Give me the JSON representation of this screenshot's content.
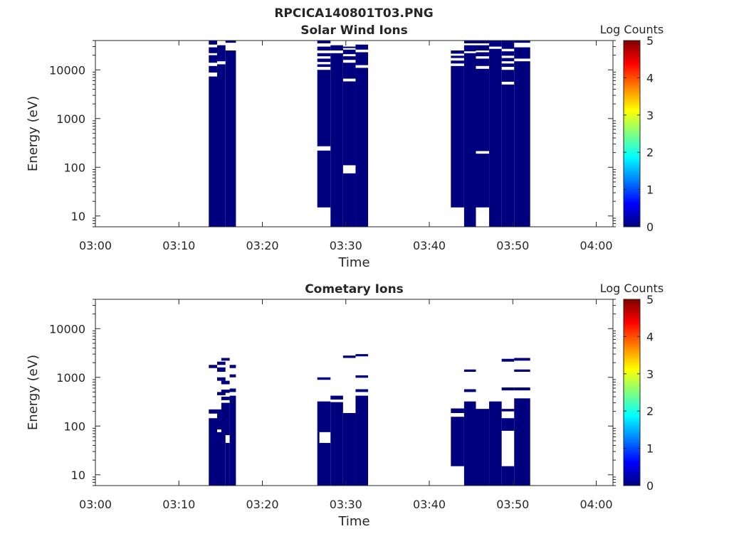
{
  "figure_title": "RPCICA140801T03.PNG",
  "colors": {
    "filled": "#00007f",
    "axis": "#262626",
    "colormap": [
      "#00007f",
      "#0000ff",
      "#0080ff",
      "#00ffff",
      "#80ff80",
      "#ffff00",
      "#ff8000",
      "#ff0000",
      "#7f0000"
    ]
  },
  "chart_data": [
    {
      "type": "heatmap",
      "title": "Solar Wind Ions",
      "xlabel": "Time",
      "ylabel": "Energy (eV)",
      "yscale": "log",
      "xlim": [
        "03:00",
        "04:02"
      ],
      "ylim": [
        6,
        40000
      ],
      "x_ticks": [
        "03:00",
        "03:10",
        "03:20",
        "03:30",
        "03:40",
        "03:50",
        "04:00"
      ],
      "y_ticks": [
        "10",
        "100",
        "1000",
        "10000"
      ],
      "colorbar": {
        "label": "Log Counts",
        "range": [
          0,
          5
        ],
        "ticks": [
          "0",
          "1",
          "2",
          "3",
          "4",
          "5"
        ]
      },
      "value_in_filled_cells": 0,
      "filled_cells": [
        {
          "t_start": "03:13:35",
          "t_end": "03:14:35",
          "e_min": 6,
          "e_max": 7300
        },
        {
          "t_start": "03:13:35",
          "t_end": "03:14:35",
          "e_min": 8800,
          "e_max": 12000
        },
        {
          "t_start": "03:13:35",
          "t_end": "03:14:35",
          "e_min": 14000,
          "e_max": 20000
        },
        {
          "t_start": "03:13:35",
          "t_end": "03:14:35",
          "e_min": 22000,
          "e_max": 29000
        },
        {
          "t_start": "03:13:35",
          "t_end": "03:14:35",
          "e_min": 33000,
          "e_max": 40000
        },
        {
          "t_start": "03:14:35",
          "t_end": "03:15:35",
          "e_min": 6,
          "e_max": 13000
        },
        {
          "t_start": "03:14:35",
          "t_end": "03:15:35",
          "e_min": 15000,
          "e_max": 32000
        },
        {
          "t_start": "03:15:35",
          "t_end": "03:16:50",
          "e_min": 6,
          "e_max": 25000
        },
        {
          "t_start": "03:15:35",
          "t_end": "03:16:50",
          "e_min": 36000,
          "e_max": 40000
        },
        {
          "t_start": "03:26:35",
          "t_end": "03:28:10",
          "e_min": 15,
          "e_max": 220
        },
        {
          "t_start": "03:26:35",
          "t_end": "03:28:10",
          "e_min": 270,
          "e_max": 10000
        },
        {
          "t_start": "03:26:35",
          "t_end": "03:28:10",
          "e_min": 11500,
          "e_max": 13000
        },
        {
          "t_start": "03:26:35",
          "t_end": "03:28:10",
          "e_min": 14500,
          "e_max": 17000
        },
        {
          "t_start": "03:26:35",
          "t_end": "03:28:10",
          "e_min": 19000,
          "e_max": 22000
        },
        {
          "t_start": "03:26:35",
          "t_end": "03:28:10",
          "e_min": 25000,
          "e_max": 30000
        },
        {
          "t_start": "03:26:35",
          "t_end": "03:28:10",
          "e_min": 35000,
          "e_max": 40000
        },
        {
          "t_start": "03:28:10",
          "t_end": "03:29:40",
          "e_min": 6,
          "e_max": 22000
        },
        {
          "t_start": "03:28:10",
          "t_end": "03:29:40",
          "e_min": 25000,
          "e_max": 32000
        },
        {
          "t_start": "03:29:40",
          "t_end": "03:31:10",
          "e_min": 6,
          "e_max": 75
        },
        {
          "t_start": "03:29:40",
          "t_end": "03:31:10",
          "e_min": 110,
          "e_max": 5800
        },
        {
          "t_start": "03:29:40",
          "t_end": "03:31:10",
          "e_min": 6600,
          "e_max": 14000
        },
        {
          "t_start": "03:29:40",
          "t_end": "03:31:10",
          "e_min": 16000,
          "e_max": 19000
        },
        {
          "t_start": "03:29:40",
          "t_end": "03:31:10",
          "e_min": 21000,
          "e_max": 26000
        },
        {
          "t_start": "03:29:40",
          "t_end": "03:31:10",
          "e_min": 28000,
          "e_max": 30000
        },
        {
          "t_start": "03:31:10",
          "t_end": "03:32:40",
          "e_min": 6,
          "e_max": 11000
        },
        {
          "t_start": "03:31:10",
          "t_end": "03:32:40",
          "e_min": 12500,
          "e_max": 23000
        },
        {
          "t_start": "03:31:10",
          "t_end": "03:32:40",
          "e_min": 26000,
          "e_max": 33000
        },
        {
          "t_start": "03:42:35",
          "t_end": "03:44:10",
          "e_min": 15,
          "e_max": 12000
        },
        {
          "t_start": "03:42:35",
          "t_end": "03:44:10",
          "e_min": 13500,
          "e_max": 15500
        },
        {
          "t_start": "03:42:35",
          "t_end": "03:44:10",
          "e_min": 17500,
          "e_max": 19500
        },
        {
          "t_start": "03:42:35",
          "t_end": "03:44:10",
          "e_min": 21500,
          "e_max": 25000
        },
        {
          "t_start": "03:44:10",
          "t_end": "03:45:35",
          "e_min": 6,
          "e_max": 22000
        },
        {
          "t_start": "03:44:10",
          "t_end": "03:45:35",
          "e_min": 24000,
          "e_max": 32000
        },
        {
          "t_start": "03:44:10",
          "t_end": "03:45:35",
          "e_min": 35000,
          "e_max": 40000
        },
        {
          "t_start": "03:45:35",
          "t_end": "03:47:10",
          "e_min": 15,
          "e_max": 190
        },
        {
          "t_start": "03:45:35",
          "t_end": "03:47:10",
          "e_min": 215,
          "e_max": 10500
        },
        {
          "t_start": "03:45:35",
          "t_end": "03:47:10",
          "e_min": 12000,
          "e_max": 17000
        },
        {
          "t_start": "03:45:35",
          "t_end": "03:47:10",
          "e_min": 19000,
          "e_max": 23000
        },
        {
          "t_start": "03:45:35",
          "t_end": "03:47:10",
          "e_min": 25000,
          "e_max": 32000
        },
        {
          "t_start": "03:45:35",
          "t_end": "03:47:10",
          "e_min": 35000,
          "e_max": 40000
        },
        {
          "t_start": "03:47:10",
          "t_end": "03:48:40",
          "e_min": 6,
          "e_max": 27000
        },
        {
          "t_start": "03:47:10",
          "t_end": "03:48:40",
          "e_min": 30000,
          "e_max": 40000
        },
        {
          "t_start": "03:48:40",
          "t_end": "03:50:10",
          "e_min": 6,
          "e_max": 5000
        },
        {
          "t_start": "03:48:40",
          "t_end": "03:50:10",
          "e_min": 5700,
          "e_max": 10000
        },
        {
          "t_start": "03:48:40",
          "t_end": "03:50:10",
          "e_min": 11500,
          "e_max": 13500
        },
        {
          "t_start": "03:48:40",
          "t_end": "03:50:10",
          "e_min": 15000,
          "e_max": 17500
        },
        {
          "t_start": "03:48:40",
          "t_end": "03:50:10",
          "e_min": 19500,
          "e_max": 24000
        },
        {
          "t_start": "03:48:40",
          "t_end": "03:50:10",
          "e_min": 27000,
          "e_max": 40000
        },
        {
          "t_start": "03:50:10",
          "t_end": "03:52:05",
          "e_min": 6,
          "e_max": 15000
        },
        {
          "t_start": "03:50:10",
          "t_end": "03:52:05",
          "e_min": 17000,
          "e_max": 29000
        },
        {
          "t_start": "03:50:10",
          "t_end": "03:52:05",
          "e_min": 36000,
          "e_max": 40000
        }
      ]
    },
    {
      "type": "heatmap",
      "title": "Cometary Ions",
      "xlabel": "Time",
      "ylabel": "Energy (eV)",
      "yscale": "log",
      "xlim": [
        "03:00",
        "04:02"
      ],
      "ylim": [
        6,
        40000
      ],
      "x_ticks": [
        "03:00",
        "03:10",
        "03:20",
        "03:30",
        "03:40",
        "03:50",
        "04:00"
      ],
      "y_ticks": [
        "10",
        "100",
        "1000",
        "10000"
      ],
      "colorbar": {
        "label": "Log Counts",
        "range": [
          0,
          5
        ],
        "ticks": [
          "0",
          "1",
          "2",
          "3",
          "4",
          "5"
        ]
      },
      "value_in_filled_cells": 0,
      "filled_cells": [
        {
          "t_start": "03:13:35",
          "t_end": "03:14:35",
          "e_min": 6,
          "e_max": 145
        },
        {
          "t_start": "03:13:35",
          "t_end": "03:14:35",
          "e_min": 180,
          "e_max": 220
        },
        {
          "t_start": "03:13:35",
          "t_end": "03:14:35",
          "e_min": 1550,
          "e_max": 1800
        },
        {
          "t_start": "03:14:35",
          "t_end": "03:15:35",
          "e_min": 6,
          "e_max": 75
        },
        {
          "t_start": "03:14:35",
          "t_end": "03:15:35",
          "e_min": 85,
          "e_max": 220
        },
        {
          "t_start": "03:14:35",
          "t_end": "03:15:35",
          "e_min": 430,
          "e_max": 500
        },
        {
          "t_start": "03:14:35",
          "t_end": "03:15:35",
          "e_min": 850,
          "e_max": 1000
        },
        {
          "t_start": "03:14:35",
          "t_end": "03:15:35",
          "e_min": 1300,
          "e_max": 1600
        },
        {
          "t_start": "03:14:35",
          "t_end": "03:15:35",
          "e_min": 1800,
          "e_max": 2100
        },
        {
          "t_start": "03:15:35",
          "t_end": "03:16:05",
          "e_min": 6,
          "e_max": 45
        },
        {
          "t_start": "03:15:05",
          "t_end": "03:16:05",
          "e_min": 65,
          "e_max": 300
        },
        {
          "t_start": "03:15:05",
          "t_end": "03:16:05",
          "e_min": 340,
          "e_max": 400
        },
        {
          "t_start": "03:15:05",
          "t_end": "03:16:05",
          "e_min": 480,
          "e_max": 560
        },
        {
          "t_start": "03:15:05",
          "t_end": "03:16:05",
          "e_min": 720,
          "e_max": 850
        },
        {
          "t_start": "03:15:05",
          "t_end": "03:16:05",
          "e_min": 2200,
          "e_max": 2500
        },
        {
          "t_start": "03:16:05",
          "t_end": "03:16:50",
          "e_min": 6,
          "e_max": 420
        },
        {
          "t_start": "03:16:05",
          "t_end": "03:16:50",
          "e_min": 500,
          "e_max": 590
        },
        {
          "t_start": "03:16:05",
          "t_end": "03:16:50",
          "e_min": 1000,
          "e_max": 1150
        },
        {
          "t_start": "03:16:05",
          "t_end": "03:16:50",
          "e_min": 1550,
          "e_max": 1800
        },
        {
          "t_start": "03:26:35",
          "t_end": "03:28:10",
          "e_min": 6,
          "e_max": 45
        },
        {
          "t_start": "03:26:35",
          "t_end": "03:26:50",
          "e_min": 45,
          "e_max": 75
        },
        {
          "t_start": "03:28:10",
          "t_end": "03:28:10",
          "e_min": 45,
          "e_max": 75
        },
        {
          "t_start": "03:26:35",
          "t_end": "03:28:10",
          "e_min": 75,
          "e_max": 320
        },
        {
          "t_start": "03:26:35",
          "t_end": "03:28:10",
          "e_min": 890,
          "e_max": 1000
        },
        {
          "t_start": "03:28:10",
          "t_end": "03:29:40",
          "e_min": 6,
          "e_max": 310
        },
        {
          "t_start": "03:28:10",
          "t_end": "03:29:40",
          "e_min": 350,
          "e_max": 420
        },
        {
          "t_start": "03:29:40",
          "t_end": "03:31:10",
          "e_min": 6,
          "e_max": 185
        },
        {
          "t_start": "03:29:40",
          "t_end": "03:31:10",
          "e_min": 2500,
          "e_max": 2800
        },
        {
          "t_start": "03:31:10",
          "t_end": "03:32:40",
          "e_min": 6,
          "e_max": 420
        },
        {
          "t_start": "03:31:10",
          "t_end": "03:32:40",
          "e_min": 500,
          "e_max": 570
        },
        {
          "t_start": "03:31:10",
          "t_end": "03:32:40",
          "e_min": 980,
          "e_max": 1100
        },
        {
          "t_start": "03:31:10",
          "t_end": "03:32:40",
          "e_min": 2700,
          "e_max": 3000
        },
        {
          "t_start": "03:42:35",
          "t_end": "03:44:10",
          "e_min": 15,
          "e_max": 155
        },
        {
          "t_start": "03:42:35",
          "t_end": "03:44:10",
          "e_min": 185,
          "e_max": 230
        },
        {
          "t_start": "03:44:10",
          "t_end": "03:45:35",
          "e_min": 6,
          "e_max": 320
        },
        {
          "t_start": "03:44:10",
          "t_end": "03:45:35",
          "e_min": 500,
          "e_max": 570
        },
        {
          "t_start": "03:44:10",
          "t_end": "03:45:35",
          "e_min": 1300,
          "e_max": 1450
        },
        {
          "t_start": "03:45:35",
          "t_end": "03:47:10",
          "e_min": 6,
          "e_max": 225
        },
        {
          "t_start": "03:47:10",
          "t_end": "03:48:40",
          "e_min": 6,
          "e_max": 320
        },
        {
          "t_start": "03:48:40",
          "t_end": "03:50:10",
          "e_min": 6,
          "e_max": 15
        },
        {
          "t_start": "03:48:40",
          "t_end": "03:50:10",
          "e_min": 80,
          "e_max": 145
        },
        {
          "t_start": "03:48:40",
          "t_end": "03:50:10",
          "e_min": 200,
          "e_max": 225
        },
        {
          "t_start": "03:48:40",
          "t_end": "03:50:10",
          "e_min": 540,
          "e_max": 620
        },
        {
          "t_start": "03:48:40",
          "t_end": "03:50:10",
          "e_min": 2100,
          "e_max": 2400
        },
        {
          "t_start": "03:50:10",
          "t_end": "03:52:05",
          "e_min": 6,
          "e_max": 370
        },
        {
          "t_start": "03:50:10",
          "t_end": "03:52:05",
          "e_min": 540,
          "e_max": 620
        },
        {
          "t_start": "03:50:10",
          "t_end": "03:52:05",
          "e_min": 1300,
          "e_max": 1450
        },
        {
          "t_start": "03:50:10",
          "t_end": "03:52:05",
          "e_min": 2200,
          "e_max": 2500
        }
      ]
    }
  ]
}
